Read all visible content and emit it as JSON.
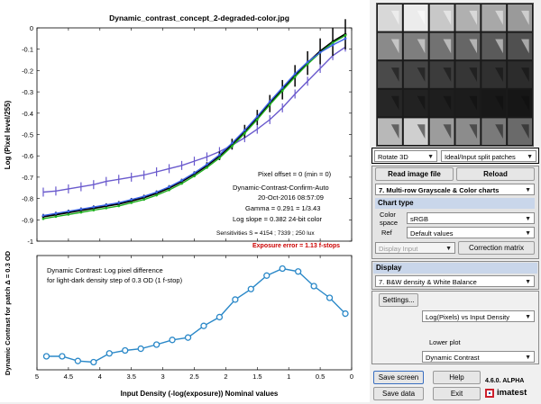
{
  "figure": {
    "main_title": "Dynamic_contrast_concept_2-degraded-color.jpg",
    "info_lines": [
      "Pixel offset = 0  (min = 0)",
      "Dynamic-Contrast-Confirm-Auto",
      "20-Oct-2016 08:57:09",
      "Gamma = 0.291 = 1/3.43",
      "Log slope = 0.382   24-bit color"
    ],
    "sensitivities_text": "Sensitivities S",
    "sensitivities_values": " = 4154 ;  7339 ;  250 lux",
    "exposure_error": "Exposure error = 1.13 f-stops",
    "lower_desc_line1": "Dynamic Contrast: Log pixel difference",
    "lower_desc_line2": "for light-dark density step of 0.3 OD (1 f-stop)",
    "xlabel": "Input Density (-log(exposure))  Nominal values",
    "colors": {
      "red": "#e02020",
      "green": "#20b020",
      "blue_sat": "#3c64e6",
      "black": "#000000",
      "purple": "#6a5acd",
      "lower_line": "#2a88c8",
      "exposure_text": "#cc0000"
    }
  },
  "chart_data": [
    {
      "type": "line",
      "title": "Dynamic_contrast_concept_2-degraded-color.jpg",
      "ylabel": "Log (Pixel level/255)",
      "xlabel": "",
      "xlim": [
        5,
        0
      ],
      "ylim": [
        -1,
        0
      ],
      "x_ticks": [
        "5",
        "4.5",
        "4",
        "3.5",
        "3",
        "2.5",
        "2",
        "1.5",
        "1",
        "0.5",
        "0"
      ],
      "y_ticks": [
        "0",
        "-0.1",
        "-0.2",
        "-0.3",
        "-0.4",
        "-0.5",
        "-0.6",
        "-0.7",
        "-0.8",
        "-0.9",
        "-1"
      ],
      "grid": false,
      "series": [
        {
          "name": "",
          "color": "#6a5acd",
          "x": [
            4.9,
            4.7,
            4.5,
            4.3,
            4.1,
            3.9,
            3.7,
            3.5,
            3.3,
            3.1,
            2.9,
            2.7,
            2.5,
            2.3,
            2.1,
            1.9,
            1.7,
            1.5,
            1.3,
            1.1,
            0.9,
            0.7,
            0.5,
            0.3,
            0.1
          ],
          "y": [
            -0.77,
            -0.765,
            -0.755,
            -0.745,
            -0.735,
            -0.72,
            -0.71,
            -0.7,
            -0.69,
            -0.675,
            -0.66,
            -0.645,
            -0.625,
            -0.605,
            -0.58,
            -0.55,
            -0.515,
            -0.475,
            -0.43,
            -0.375,
            -0.31,
            -0.25,
            -0.19,
            -0.13,
            -0.09
          ]
        },
        {
          "name": "",
          "color": "#000000",
          "x": [
            4.9,
            4.7,
            4.5,
            4.3,
            4.1,
            3.9,
            3.7,
            3.5,
            3.3,
            3.1,
            2.9,
            2.7,
            2.5,
            2.3,
            2.1,
            1.9,
            1.7,
            1.5,
            1.3,
            1.1,
            0.9,
            0.7,
            0.5,
            0.3,
            0.1
          ],
          "y": [
            -0.885,
            -0.875,
            -0.865,
            -0.855,
            -0.845,
            -0.835,
            -0.825,
            -0.81,
            -0.795,
            -0.775,
            -0.75,
            -0.72,
            -0.685,
            -0.645,
            -0.6,
            -0.545,
            -0.485,
            -0.42,
            -0.355,
            -0.29,
            -0.225,
            -0.165,
            -0.11,
            -0.065,
            -0.03
          ]
        },
        {
          "name": "",
          "color": "#20b020",
          "x": [
            4.9,
            4.7,
            4.5,
            4.3,
            4.1,
            3.9,
            3.7,
            3.5,
            3.3,
            3.1,
            2.9,
            2.7,
            2.5,
            2.3,
            2.1,
            1.9,
            1.7,
            1.5,
            1.3,
            1.1,
            0.9,
            0.7,
            0.5,
            0.3,
            0.1
          ],
          "y": [
            -0.895,
            -0.885,
            -0.875,
            -0.865,
            -0.855,
            -0.845,
            -0.835,
            -0.82,
            -0.805,
            -0.785,
            -0.76,
            -0.73,
            -0.695,
            -0.655,
            -0.61,
            -0.555,
            -0.495,
            -0.43,
            -0.36,
            -0.295,
            -0.23,
            -0.17,
            -0.115,
            -0.07,
            -0.035
          ]
        },
        {
          "name": "",
          "color": "#3c64e6",
          "x": [
            4.9,
            4.7,
            4.5,
            4.3,
            4.1,
            3.9,
            3.7,
            3.5,
            3.3,
            3.1,
            2.9,
            2.7,
            2.5,
            2.3,
            2.1,
            1.9,
            1.7,
            1.5,
            1.3,
            1.1,
            0.9,
            0.7,
            0.5,
            0.3,
            0.1
          ],
          "y": [
            -0.88,
            -0.87,
            -0.86,
            -0.85,
            -0.84,
            -0.83,
            -0.82,
            -0.805,
            -0.79,
            -0.77,
            -0.745,
            -0.715,
            -0.68,
            -0.64,
            -0.595,
            -0.54,
            -0.48,
            -0.415,
            -0.345,
            -0.28,
            -0.215,
            -0.16,
            -0.115,
            -0.08,
            -0.05
          ]
        }
      ]
    },
    {
      "type": "line",
      "title": "",
      "ylabel": "Dynamic Contrast for patch Δ = 0.3 OD",
      "xlabel": "Input Density (-log(exposure))  Nominal values",
      "xlim": [
        5,
        0
      ],
      "x_ticks": [
        "5",
        "4.5",
        "4",
        "3.5",
        "3",
        "2.5",
        "2",
        "1.5",
        "1",
        "0.5",
        "0"
      ],
      "grid": false,
      "series": [
        {
          "name": "",
          "color": "#2a88c8",
          "x": [
            4.85,
            4.6,
            4.35,
            4.1,
            3.85,
            3.6,
            3.35,
            3.1,
            2.85,
            2.6,
            2.35,
            2.1,
            1.85,
            1.6,
            1.35,
            1.1,
            0.85,
            0.6,
            0.35,
            0.1
          ],
          "y": [
            0.02,
            0.02,
            0.012,
            0.01,
            0.025,
            0.03,
            0.033,
            0.04,
            0.048,
            0.052,
            0.072,
            0.087,
            0.117,
            0.135,
            0.158,
            0.17,
            0.165,
            0.14,
            0.12,
            0.093
          ]
        }
      ]
    }
  ],
  "panel": {
    "rotate_select": "Rotate 3D",
    "split_select": "Ideal/Input split patches",
    "read_button": "Read image file",
    "reload_button": "Reload",
    "chart_select": "7.  Multi-row Grayscale & Color charts",
    "chart_type_header": "Chart type",
    "color_space_label1": "Color",
    "color_space_label2": "space",
    "color_space_value": "sRGB",
    "ref_label": "Ref",
    "ref_value": "Default values",
    "display_input": "Display Input",
    "correction_button": "Correction matrix",
    "display_header": "Display",
    "display_select": "7.  B&W density & White Balance",
    "settings_button": "Settings...",
    "upper_plot_select": "Log(Pixels) vs Input Density",
    "lower_plot_label": "Lower plot",
    "lower_plot_select": "Dynamic Contrast",
    "save_screen": "Save screen",
    "help": "Help",
    "save_data": "Save data",
    "exit": "Exit",
    "version": "4.6.0. ALPHA",
    "brand": "imatest"
  }
}
